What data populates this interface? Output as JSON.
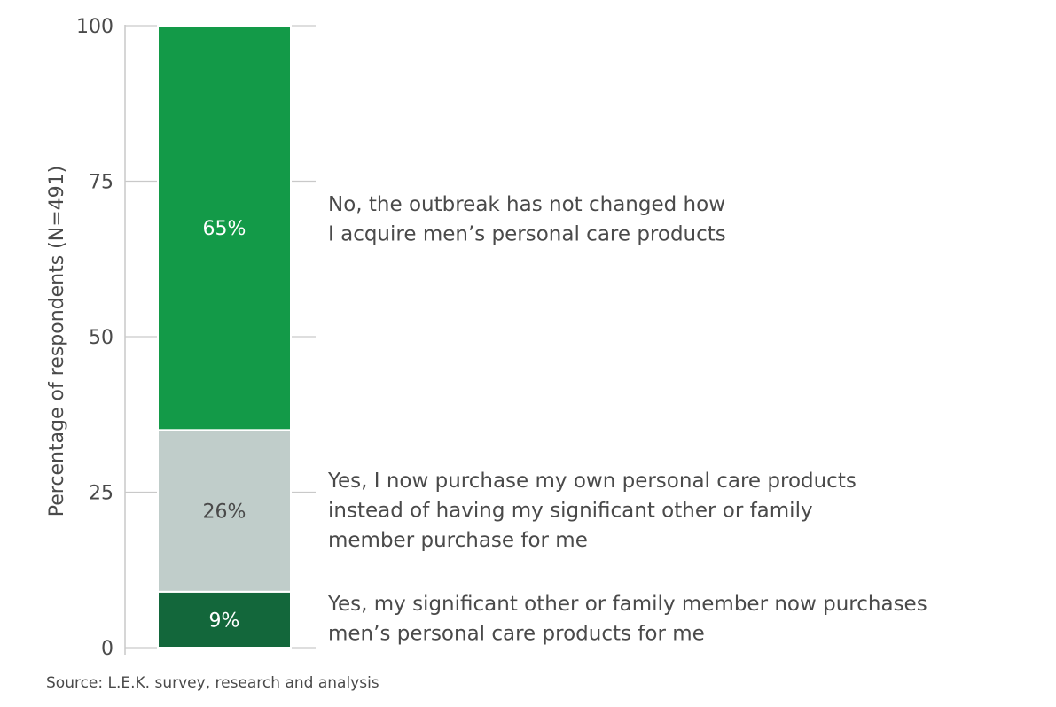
{
  "chart_data": {
    "type": "bar",
    "stacked": true,
    "categories": [
      ""
    ],
    "ylabel": "Percentage of respondents (N=491)",
    "ylim": [
      0,
      100
    ],
    "yticks": [
      0,
      25,
      50,
      75,
      100
    ],
    "grid": false,
    "series": [
      {
        "name": "Yes, my significant other or family member now purchases men’s personal care products for me",
        "lines": [
          "Yes, my significant other or family member now purchases",
          "men’s personal care products for me"
        ],
        "values": [
          9
        ],
        "label": "9%",
        "color": "#13673b",
        "label_color": "#ffffff"
      },
      {
        "name": "Yes, I now purchase my own personal care products instead of having my significant other or family member purchase for me",
        "lines": [
          "Yes, I now purchase my own personal care products",
          "instead of having my significant other or family",
          "member purchase for me"
        ],
        "values": [
          26
        ],
        "label": "26%",
        "color": "#c0cdca",
        "label_color": "#4a4a4a"
      },
      {
        "name": "No, the outbreak has not changed how I acquire men’s personal care products",
        "lines": [
          "No, the outbreak has not changed how",
          "I acquire men’s personal care products"
        ],
        "values": [
          65
        ],
        "label": "65%",
        "color": "#139a48",
        "label_color": "#ffffff"
      }
    ]
  },
  "source": "Source: L.E.K. survey, research and analysis"
}
